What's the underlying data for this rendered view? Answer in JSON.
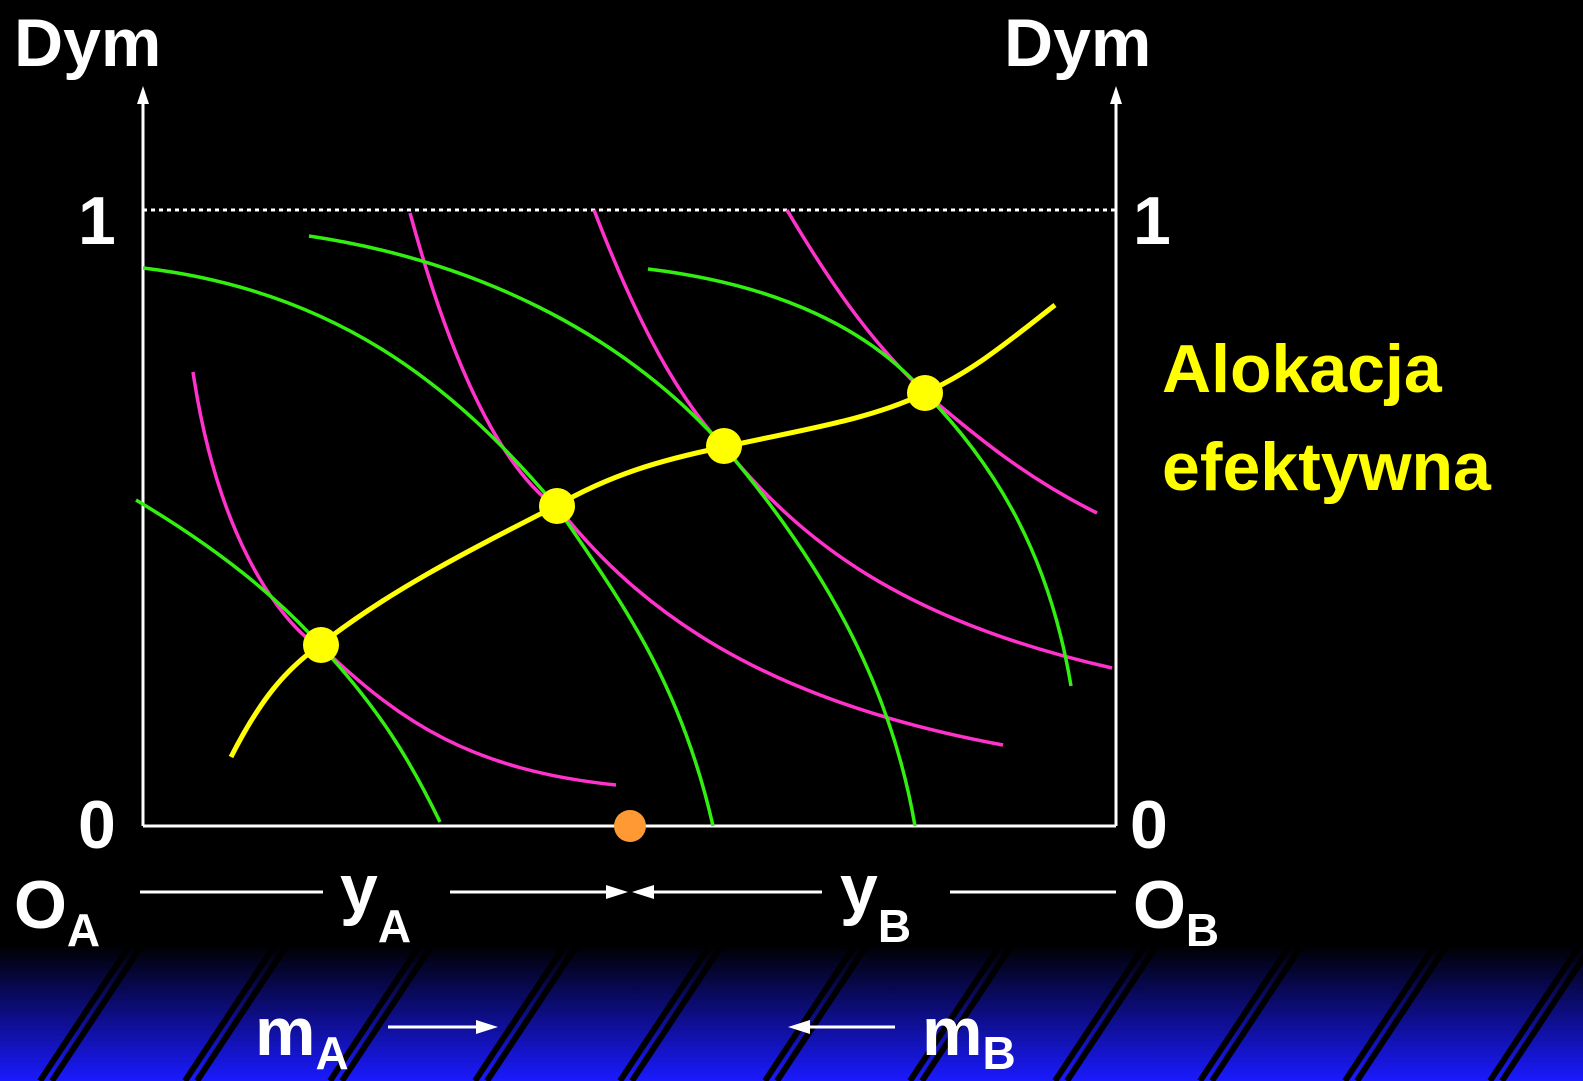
{
  "colors": {
    "background": "#000000",
    "axis": "#ffffff",
    "curve_a": "#ff33cc",
    "curve_b": "#33ee11",
    "contract_curve": "#ffff00",
    "initial_point": "#ff9933",
    "footer_band_top": "#000000",
    "footer_band_bottom": "#1a1aff"
  },
  "labels": {
    "left_axis": "Dym",
    "right_axis": "Dym",
    "left_top": "1",
    "right_top": "1",
    "left_bottom": "0",
    "right_bottom": "0",
    "origin_a": "O",
    "origin_a_sub": "A",
    "origin_b": "O",
    "origin_b_sub": "B",
    "y_a": "y",
    "y_a_sub": "A",
    "y_b": "y",
    "y_b_sub": "B",
    "m_a": "m",
    "m_a_sub": "A",
    "m_b": "m",
    "m_b_sub": "B",
    "title_line1": "Alokacja",
    "title_line2": "efektywna"
  },
  "icons": [
    "arrow-up-icon",
    "arrow-right-icon",
    "arrow-left-icon"
  ]
}
